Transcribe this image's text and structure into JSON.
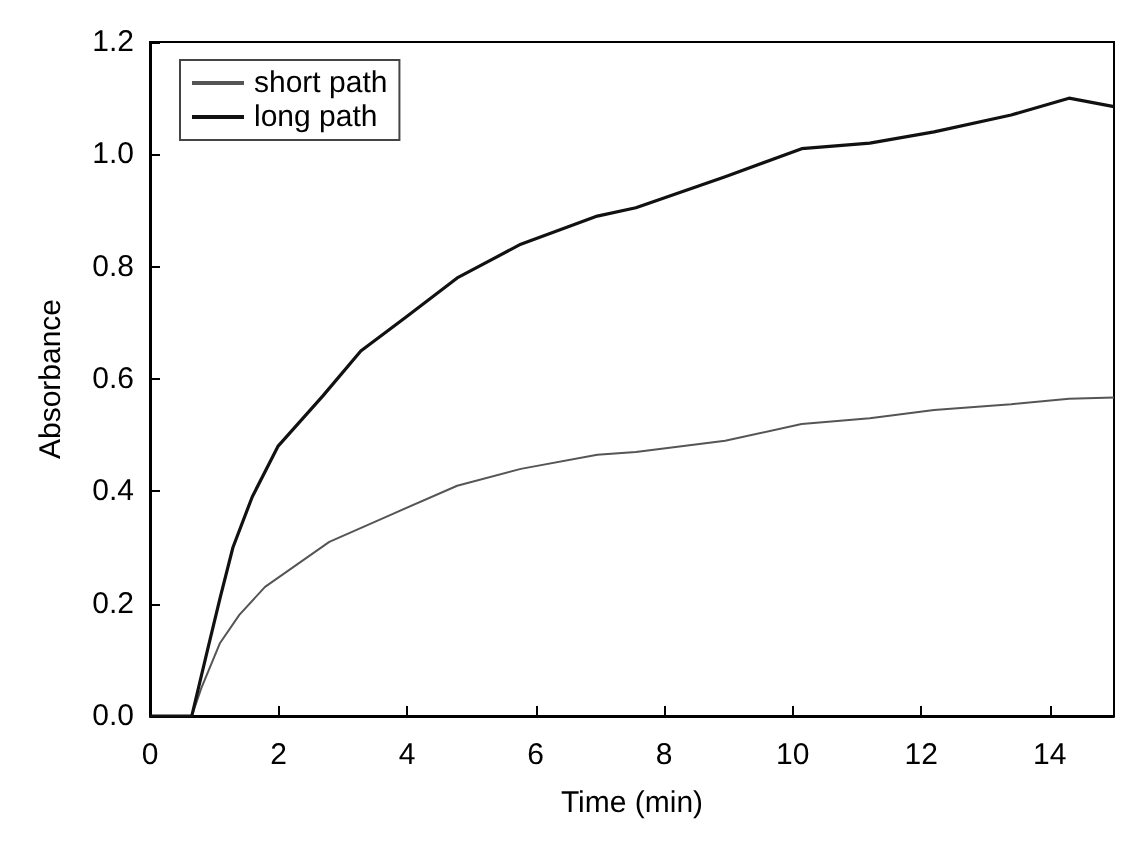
{
  "chart_data": {
    "type": "line",
    "xlabel": "Time (min)",
    "ylabel": "Absorbance",
    "xlim": [
      0,
      15
    ],
    "xticks": [
      0,
      2,
      4,
      6,
      8,
      10,
      12,
      14
    ],
    "ylim": [
      0,
      1.2
    ],
    "yticks": [
      {
        "value": 0,
        "label": "0.0"
      },
      0.2,
      0.4,
      0.6,
      0.8,
      {
        "value": 1,
        "label": "1.0"
      },
      1.2
    ],
    "grid": false,
    "legend": "top left",
    "marker": "none",
    "line_style": "solid",
    "series": [
      {
        "name": "short path",
        "color": "#555555",
        "x": [
          0,
          0.3,
          0.65,
          0.8,
          1.09,
          1.39,
          1.79,
          2.29,
          2.79,
          3.78,
          4.78,
          5.77,
          6.96,
          7.56,
          8.95,
          10.14,
          11.2,
          12.2,
          13.4,
          14.3,
          15
        ],
        "values": [
          0,
          0,
          0,
          0.05,
          0.13,
          0.18,
          0.23,
          0.27,
          0.31,
          0.36,
          0.41,
          0.44,
          0.465,
          0.47,
          0.49,
          0.52,
          0.53,
          0.545,
          0.555,
          0.565,
          0.567
        ]
      },
      {
        "name": "long path",
        "color": "#111111",
        "x": [
          0,
          0.3,
          0.65,
          0.9,
          1.09,
          1.29,
          1.59,
          1.99,
          2.69,
          3.28,
          3.98,
          4.78,
          5.77,
          6.96,
          7.56,
          8.95,
          10.14,
          11.2,
          12.2,
          13.4,
          14.3,
          15
        ],
        "values": [
          0,
          0,
          0,
          0.12,
          0.21,
          0.3,
          0.39,
          0.48,
          0.57,
          0.65,
          0.71,
          0.78,
          0.84,
          0.89,
          0.905,
          0.96,
          1.01,
          1.02,
          1.04,
          1.07,
          1.1,
          1.085
        ]
      }
    ]
  }
}
